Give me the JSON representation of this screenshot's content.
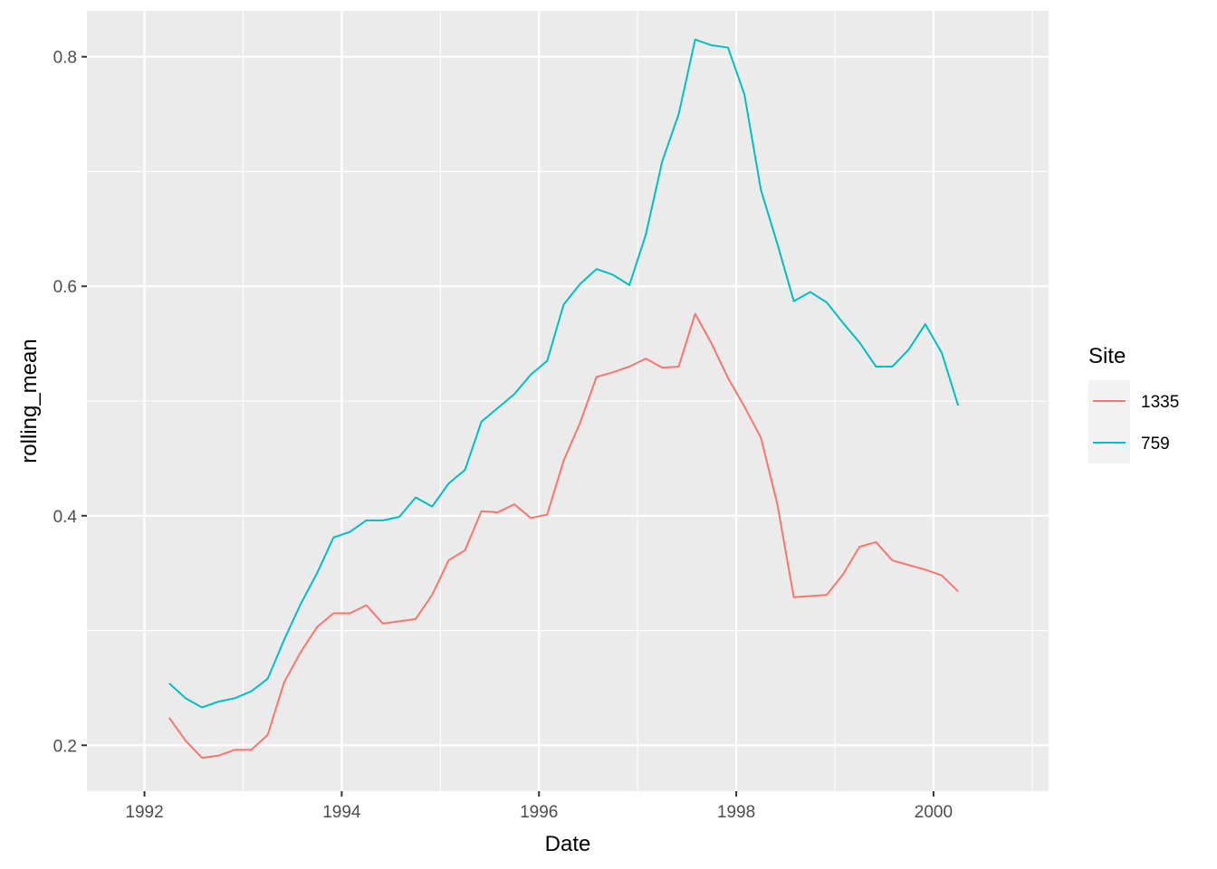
{
  "chart_data": {
    "type": "line",
    "xlabel": "Date",
    "ylabel": "rolling_mean",
    "xlim": [
      "1991-06-01",
      "2001-03-01"
    ],
    "ylim": [
      0.16,
      0.84
    ],
    "x_ticks": [
      {
        "label": "1992",
        "date": "1992-01-01"
      },
      {
        "label": "1994",
        "date": "1994-01-01"
      },
      {
        "label": "1996",
        "date": "1996-01-01"
      },
      {
        "label": "1998",
        "date": "1998-01-01"
      },
      {
        "label": "2000",
        "date": "2000-01-01"
      }
    ],
    "x_minor_ticks": [
      "1993-01-01",
      "1995-01-01",
      "1997-01-01",
      "1999-01-01",
      "2001-01-01"
    ],
    "y_ticks": [
      {
        "label": "0.2",
        "value": 0.2
      },
      {
        "label": "0.4",
        "value": 0.4
      },
      {
        "label": "0.6",
        "value": 0.6
      },
      {
        "label": "0.8",
        "value": 0.8
      }
    ],
    "y_minor_ticks": [
      0.3,
      0.5,
      0.7
    ],
    "grid": true,
    "panel_background": "#ebebeb",
    "grid_color": "#ffffff",
    "legend": {
      "title": "Site",
      "placement": "right"
    },
    "series": [
      {
        "name": "1335",
        "color": "#f8766d",
        "points": [
          [
            "1992-04-01",
            0.224
          ],
          [
            "1992-06-01",
            0.204
          ],
          [
            "1992-08-01",
            0.189
          ],
          [
            "1992-10-01",
            0.191
          ],
          [
            "1992-12-01",
            0.196
          ],
          [
            "1993-02-01",
            0.196
          ],
          [
            "1993-04-01",
            0.209
          ],
          [
            "1993-06-01",
            0.255
          ],
          [
            "1993-08-01",
            0.281
          ],
          [
            "1993-10-01",
            0.303
          ],
          [
            "1993-12-01",
            0.315
          ],
          [
            "1994-02-01",
            0.315
          ],
          [
            "1994-04-01",
            0.322
          ],
          [
            "1994-06-01",
            0.306
          ],
          [
            "1994-08-01",
            0.308
          ],
          [
            "1994-10-01",
            0.31
          ],
          [
            "1994-12-01",
            0.331
          ],
          [
            "1995-02-01",
            0.361
          ],
          [
            "1995-04-01",
            0.37
          ],
          [
            "1995-06-01",
            0.404
          ],
          [
            "1995-08-01",
            0.403
          ],
          [
            "1995-10-01",
            0.41
          ],
          [
            "1995-12-01",
            0.398
          ],
          [
            "1996-02-01",
            0.401
          ],
          [
            "1996-04-01",
            0.448
          ],
          [
            "1996-06-01",
            0.481
          ],
          [
            "1996-08-01",
            0.521
          ],
          [
            "1996-10-01",
            0.525
          ],
          [
            "1996-12-01",
            0.53
          ],
          [
            "1997-02-01",
            0.537
          ],
          [
            "1997-04-01",
            0.529
          ],
          [
            "1997-06-01",
            0.53
          ],
          [
            "1997-08-01",
            0.576
          ],
          [
            "1997-10-01",
            0.55
          ],
          [
            "1997-12-01",
            0.52
          ],
          [
            "1998-02-01",
            0.495
          ],
          [
            "1998-04-01",
            0.468
          ],
          [
            "1998-06-01",
            0.41
          ],
          [
            "1998-08-01",
            0.329
          ],
          [
            "1998-10-01",
            0.33
          ],
          [
            "1998-12-01",
            0.331
          ],
          [
            "1999-02-01",
            0.349
          ],
          [
            "1999-04-01",
            0.373
          ],
          [
            "1999-06-01",
            0.377
          ],
          [
            "1999-08-01",
            0.361
          ],
          [
            "1999-10-01",
            0.357
          ],
          [
            "1999-12-01",
            0.353
          ],
          [
            "2000-02-01",
            0.348
          ],
          [
            "2000-04-01",
            0.334
          ]
        ]
      },
      {
        "name": "759",
        "color": "#00bfc4",
        "points": [
          [
            "1992-04-01",
            0.254
          ],
          [
            "1992-06-01",
            0.241
          ],
          [
            "1992-08-01",
            0.233
          ],
          [
            "1992-10-01",
            0.238
          ],
          [
            "1992-12-01",
            0.241
          ],
          [
            "1993-02-01",
            0.247
          ],
          [
            "1993-04-01",
            0.258
          ],
          [
            "1993-06-01",
            0.292
          ],
          [
            "1993-08-01",
            0.323
          ],
          [
            "1993-10-01",
            0.35
          ],
          [
            "1993-12-01",
            0.381
          ],
          [
            "1994-02-01",
            0.386
          ],
          [
            "1994-04-01",
            0.396
          ],
          [
            "1994-06-01",
            0.396
          ],
          [
            "1994-08-01",
            0.399
          ],
          [
            "1994-10-01",
            0.416
          ],
          [
            "1994-12-01",
            0.408
          ],
          [
            "1995-02-01",
            0.428
          ],
          [
            "1995-04-01",
            0.44
          ],
          [
            "1995-06-01",
            0.482
          ],
          [
            "1995-08-01",
            0.494
          ],
          [
            "1995-10-01",
            0.506
          ],
          [
            "1995-12-01",
            0.523
          ],
          [
            "1996-02-01",
            0.535
          ],
          [
            "1996-04-01",
            0.584
          ],
          [
            "1996-06-01",
            0.602
          ],
          [
            "1996-08-01",
            0.615
          ],
          [
            "1996-10-01",
            0.61
          ],
          [
            "1996-12-01",
            0.601
          ],
          [
            "1997-02-01",
            0.645
          ],
          [
            "1997-04-01",
            0.709
          ],
          [
            "1997-06-01",
            0.75
          ],
          [
            "1997-08-01",
            0.815
          ],
          [
            "1997-10-01",
            0.81
          ],
          [
            "1997-12-01",
            0.808
          ],
          [
            "1998-02-01",
            0.767
          ],
          [
            "1998-04-01",
            0.684
          ],
          [
            "1998-06-01",
            0.637
          ],
          [
            "1998-08-01",
            0.587
          ],
          [
            "1998-10-01",
            0.595
          ],
          [
            "1998-12-01",
            0.586
          ],
          [
            "1999-02-01",
            0.568
          ],
          [
            "1999-04-01",
            0.551
          ],
          [
            "1999-06-01",
            0.53
          ],
          [
            "1999-08-01",
            0.53
          ],
          [
            "1999-10-01",
            0.545
          ],
          [
            "1999-12-01",
            0.567
          ],
          [
            "2000-02-01",
            0.542
          ],
          [
            "2000-04-01",
            0.496
          ]
        ]
      }
    ]
  }
}
